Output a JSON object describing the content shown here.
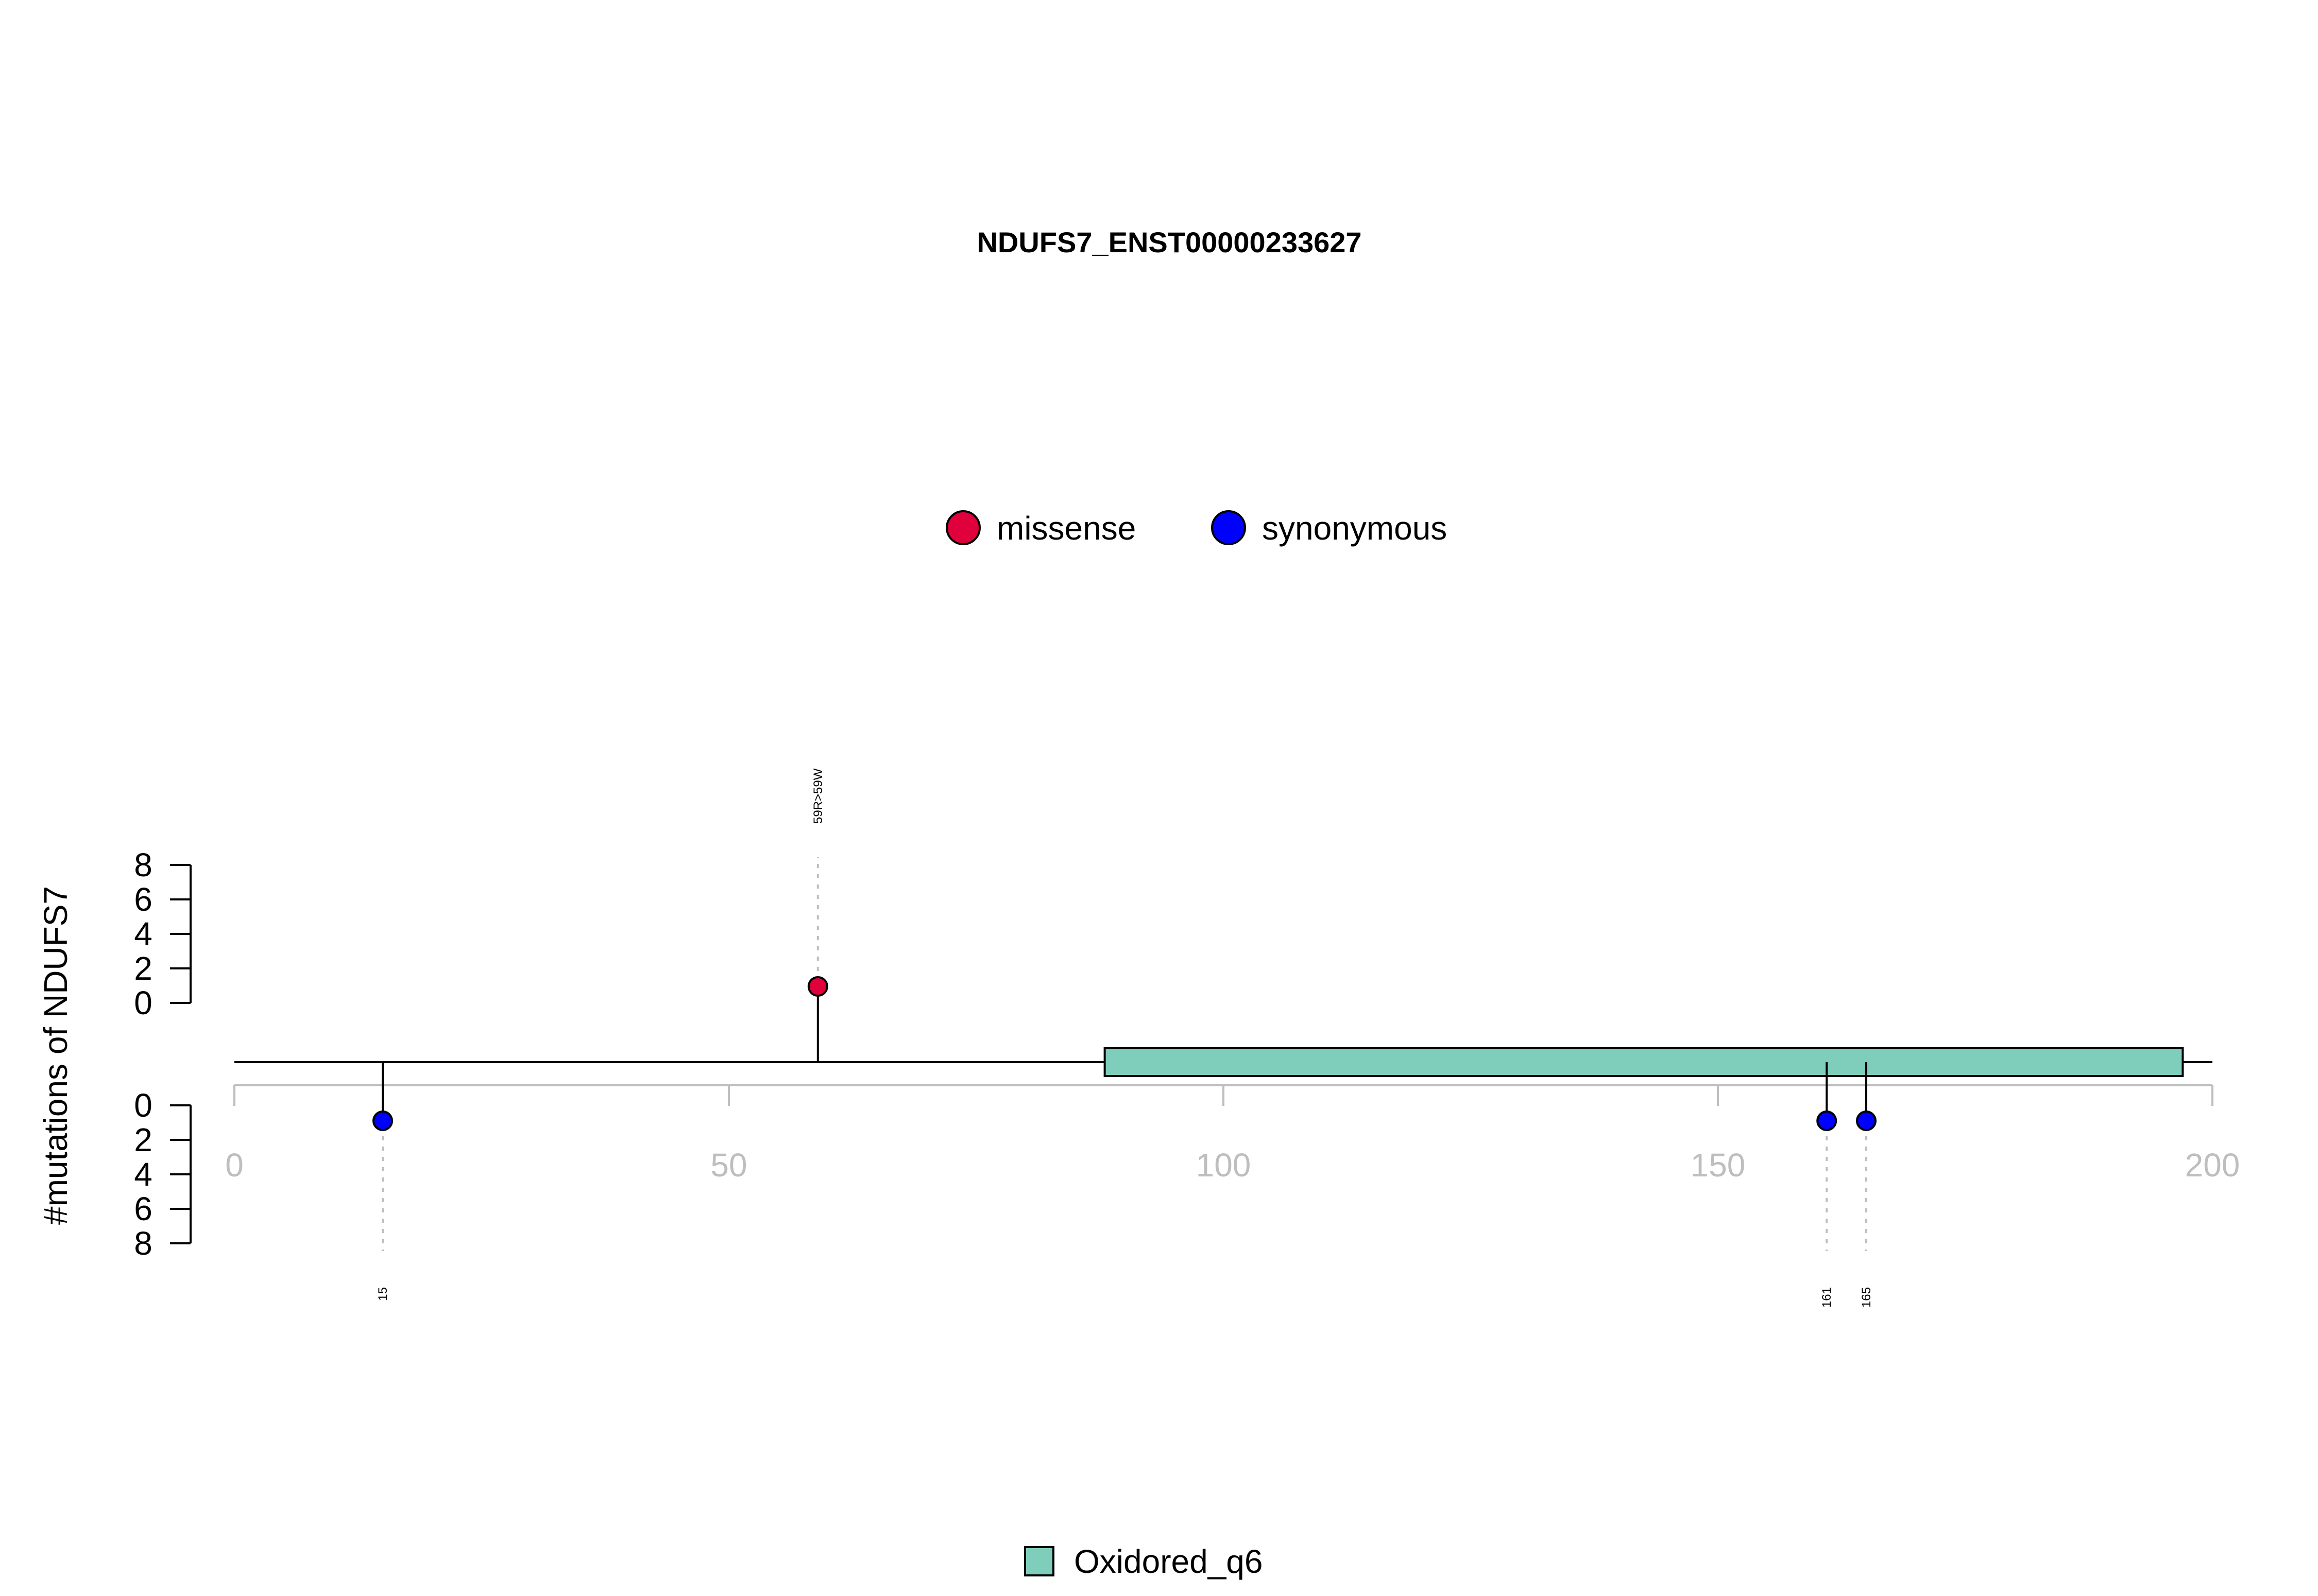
{
  "chart_data": {
    "type": "lollipop",
    "title": "NDUFS7_ENST00000233627",
    "ylabel": "#mutations of NDUFS7",
    "xlim": [
      0,
      200
    ],
    "x_ticks": [
      "0",
      "50",
      "100",
      "150",
      "200"
    ],
    "protein_length": 200,
    "y_ticks_top": [
      "0",
      "2",
      "4",
      "6",
      "8"
    ],
    "y_ticks_bottom": [
      "0",
      "2",
      "4",
      "6",
      "8"
    ],
    "ylim": [
      0,
      8
    ],
    "legend_mutation_types": [
      {
        "name": "missense",
        "color": "#e0003c"
      },
      {
        "name": "synonymous",
        "color": "#0000ff"
      }
    ],
    "mutations": [
      {
        "position": 59,
        "count": 1,
        "type": "missense",
        "side": "top",
        "label": "59R>59W"
      },
      {
        "position": 15,
        "count": 1,
        "type": "synonymous",
        "side": "bottom",
        "label": "15"
      },
      {
        "position": 161,
        "count": 1,
        "type": "synonymous",
        "side": "bottom",
        "label": "161"
      },
      {
        "position": 165,
        "count": 1,
        "type": "synonymous",
        "side": "bottom",
        "label": "165"
      }
    ],
    "domains": [
      {
        "name": "Oxidored_q6",
        "start": 88,
        "end": 197,
        "color": "#7fcdbb"
      }
    ],
    "legend_domains": [
      {
        "name": "Oxidored_q6",
        "color": "#7fcdbb"
      }
    ]
  }
}
